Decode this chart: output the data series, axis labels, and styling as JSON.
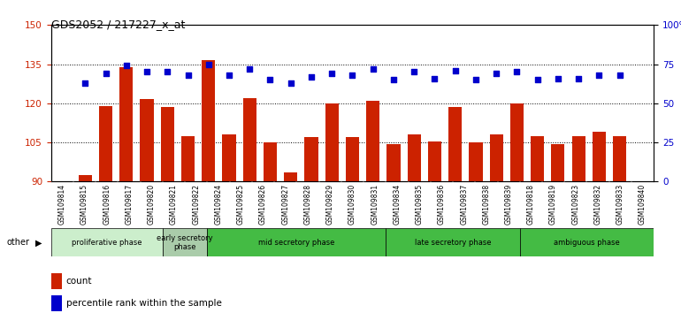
{
  "title": "GDS2052 / 217227_x_at",
  "samples": [
    "GSM109814",
    "GSM109815",
    "GSM109816",
    "GSM109817",
    "GSM109820",
    "GSM109821",
    "GSM109822",
    "GSM109824",
    "GSM109825",
    "GSM109826",
    "GSM109827",
    "GSM109828",
    "GSM109829",
    "GSM109830",
    "GSM109831",
    "GSM109834",
    "GSM109835",
    "GSM109836",
    "GSM109837",
    "GSM109838",
    "GSM109839",
    "GSM109818",
    "GSM109819",
    "GSM109823",
    "GSM109832",
    "GSM109833",
    "GSM109840"
  ],
  "bar_values": [
    92.5,
    119.0,
    134.0,
    121.5,
    118.5,
    107.5,
    136.5,
    108.0,
    122.0,
    105.0,
    93.5,
    107.0,
    120.0,
    107.0,
    121.0,
    104.5,
    108.0,
    105.5,
    118.5,
    105.0,
    108.0,
    120.0,
    107.5,
    104.5,
    107.5,
    109.0,
    107.5
  ],
  "dot_values": [
    63,
    69,
    74,
    70,
    70,
    68,
    75,
    68,
    72,
    65,
    63,
    67,
    69,
    68,
    72,
    65,
    70,
    66,
    71,
    65,
    69,
    70,
    65,
    66,
    66,
    68,
    68
  ],
  "ylim_left": [
    90,
    150
  ],
  "ylim_right": [
    0,
    100
  ],
  "yticks_left": [
    90,
    105,
    120,
    135,
    150
  ],
  "yticks_right": [
    0,
    25,
    50,
    75,
    100
  ],
  "ytick_labels_right": [
    "0",
    "25",
    "50",
    "75",
    "100%"
  ],
  "bar_color": "#cc2200",
  "dot_color": "#0000cc",
  "phase_data": [
    {
      "label": "proliferative phase",
      "start": 0,
      "end": 5,
      "color": "#cceecc"
    },
    {
      "label": "early secretory\nphase",
      "start": 5,
      "end": 7,
      "color": "#aaccaa"
    },
    {
      "label": "mid secretory phase",
      "start": 7,
      "end": 15,
      "color": "#44bb44"
    },
    {
      "label": "late secretory phase",
      "start": 15,
      "end": 21,
      "color": "#44bb44"
    },
    {
      "label": "ambiguous phase",
      "start": 21,
      "end": 27,
      "color": "#44bb44"
    }
  ]
}
